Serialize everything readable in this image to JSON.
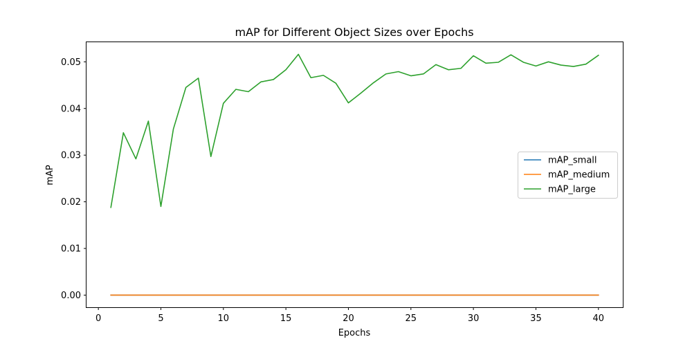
{
  "chart_data": {
    "type": "line",
    "title": "mAP for Different Object Sizes over Epochs",
    "xlabel": "Epochs",
    "ylabel": "mAP",
    "xlim": [
      -0.95,
      41.95
    ],
    "ylim": [
      -0.0026,
      0.0542
    ],
    "xticks": [
      0,
      5,
      10,
      15,
      20,
      25,
      30,
      35,
      40
    ],
    "yticks": [
      0.0,
      0.01,
      0.02,
      0.03,
      0.04,
      0.05
    ],
    "ytick_labels": [
      "0.00",
      "0.01",
      "0.02",
      "0.03",
      "0.04",
      "0.05"
    ],
    "legend_position": "center-right",
    "grid": false,
    "x": [
      1,
      2,
      3,
      4,
      5,
      6,
      7,
      8,
      9,
      10,
      11,
      12,
      13,
      14,
      15,
      16,
      17,
      18,
      19,
      20,
      21,
      22,
      23,
      24,
      25,
      26,
      27,
      28,
      29,
      30,
      31,
      32,
      33,
      34,
      35,
      36,
      37,
      38,
      39,
      40
    ],
    "series": [
      {
        "name": "mAP_small",
        "color": "#1f77b4",
        "values": [
          0,
          0,
          0,
          0,
          0,
          0,
          0,
          0,
          0,
          0,
          0,
          0,
          0,
          0,
          0,
          0,
          0,
          0,
          0,
          0,
          0,
          0,
          0,
          0,
          0,
          0,
          0,
          0,
          0,
          0,
          0,
          0,
          0,
          0,
          0,
          0,
          0,
          0,
          0,
          0
        ]
      },
      {
        "name": "mAP_medium",
        "color": "#ff7f0e",
        "values": [
          0,
          0,
          0,
          0,
          0,
          0,
          0,
          0,
          0,
          0,
          0,
          0,
          0,
          0,
          0,
          0,
          0,
          0,
          0,
          0,
          0,
          0,
          0,
          0,
          0,
          0,
          0,
          0,
          0,
          0,
          0,
          0,
          0,
          0,
          0,
          0,
          0,
          0,
          0,
          0
        ]
      },
      {
        "name": "mAP_large",
        "color": "#2ca02c",
        "values": [
          0.0188,
          0.0348,
          0.0292,
          0.0373,
          0.019,
          0.0356,
          0.0445,
          0.0465,
          0.0297,
          0.0411,
          0.0441,
          0.0436,
          0.0457,
          0.0462,
          0.0483,
          0.0516,
          0.0466,
          0.0471,
          0.0454,
          0.0412,
          0.0433,
          0.0455,
          0.0474,
          0.0479,
          0.047,
          0.0474,
          0.0494,
          0.0483,
          0.0486,
          0.0513,
          0.0497,
          0.0499,
          0.0515,
          0.0499,
          0.0491,
          0.05,
          0.0493,
          0.049,
          0.0495,
          0.0514
        ]
      }
    ]
  }
}
